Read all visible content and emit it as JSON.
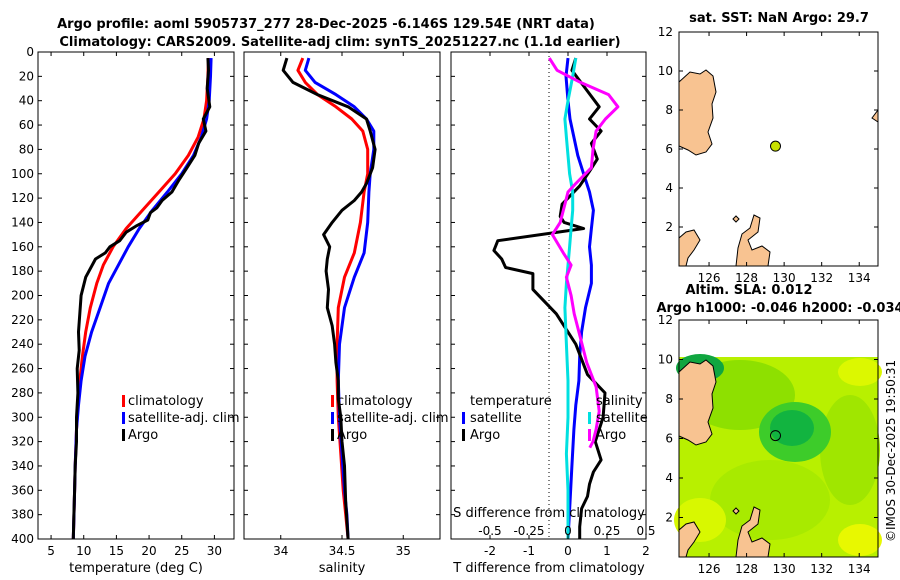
{
  "figure": {
    "title_line1": "Argo profile: aoml 5905737_277 28-Dec-2025 -6.146S 129.54E (NRT data)",
    "title_line2": "Climatology: CARS2009. Satellite-adj clim: synTS_20251227.nc (1.1d earlier)",
    "credit": "©IMOS 30-Dec-2025 19:50:31"
  },
  "colors": {
    "climatology": "#ff0000",
    "satellite": "#0000ff",
    "argo": "#000000",
    "salinity_diff": "#ff00ff",
    "salinity_sat": "#00e0e0",
    "land": "#f8c391",
    "marker": "#c8e000"
  },
  "chart_data": [
    {
      "id": "temperature",
      "type": "line",
      "xlabel": "temperature (deg C)",
      "xlim": [
        3,
        33
      ],
      "xticks": [
        "5",
        "10",
        "15",
        "20",
        "25",
        "30"
      ],
      "xtick_values": [
        5,
        10,
        15,
        20,
        25,
        30
      ],
      "ylim": [
        0,
        400
      ],
      "yticks": [
        "0",
        "20",
        "40",
        "60",
        "80",
        "100",
        "120",
        "140",
        "160",
        "180",
        "200",
        "220",
        "240",
        "260",
        "280",
        "300",
        "320",
        "340",
        "360",
        "380",
        "400"
      ],
      "ytick_values": [
        0,
        20,
        40,
        60,
        80,
        100,
        120,
        140,
        160,
        180,
        200,
        220,
        240,
        260,
        280,
        300,
        320,
        340,
        360,
        380,
        400
      ],
      "legend": [
        "climatology",
        "satellite-adj. clim",
        "Argo"
      ],
      "series": [
        {
          "name": "climatology",
          "color": "climatology",
          "x": [
            29.1,
            29.0,
            28.8,
            28.4,
            27.5,
            26.0,
            24.0,
            21.5,
            19.0,
            16.5,
            14.5,
            13.0,
            12.0,
            11.0,
            10.3,
            9.8,
            9.4,
            9.1,
            8.9,
            8.7,
            8.55,
            8.4
          ],
          "y": [
            5,
            20,
            40,
            55,
            70,
            85,
            100,
            115,
            130,
            145,
            160,
            175,
            190,
            210,
            230,
            250,
            270,
            290,
            310,
            340,
            370,
            400
          ]
        },
        {
          "name": "satellite-adj. clim",
          "color": "satellite",
          "x": [
            29.5,
            29.4,
            29.2,
            28.8,
            28.0,
            26.8,
            25.0,
            22.8,
            20.5,
            18.5,
            16.8,
            15.3,
            13.8,
            12.5,
            11.2,
            10.2,
            9.6,
            9.2,
            8.9,
            8.7,
            8.55,
            8.4
          ],
          "y": [
            5,
            20,
            40,
            55,
            70,
            85,
            100,
            115,
            130,
            145,
            160,
            175,
            190,
            210,
            230,
            250,
            270,
            290,
            310,
            340,
            370,
            400
          ]
        },
        {
          "name": "Argo",
          "color": "argo",
          "x": [
            29.0,
            29.1,
            28.9,
            29.3,
            28.3,
            28.7,
            27.6,
            27.0,
            25.8,
            24.6,
            23.5,
            22.0,
            21.2,
            20.2,
            19.8,
            18.0,
            16.5,
            15.5,
            14.0,
            13.3,
            11.8,
            10.3,
            9.6,
            9.4,
            9.2,
            9.3,
            9.0,
            9.1,
            8.9,
            8.9,
            8.7,
            8.6,
            8.5,
            8.4
          ],
          "y": [
            5,
            15,
            30,
            45,
            55,
            65,
            75,
            85,
            95,
            105,
            115,
            122,
            128,
            132,
            138,
            143,
            148,
            155,
            160,
            165,
            170,
            185,
            200,
            215,
            230,
            245,
            260,
            280,
            300,
            320,
            340,
            360,
            380,
            400
          ]
        }
      ]
    },
    {
      "id": "salinity",
      "type": "line",
      "xlabel": "salinity",
      "xlim": [
        33.7,
        35.3
      ],
      "xticks": [
        "34",
        "34.5",
        "35"
      ],
      "xtick_values": [
        34.0,
        34.5,
        35.0
      ],
      "ylim": [
        0,
        400
      ],
      "legend": [
        "climatology",
        "satellite-adj. clim",
        "Argo"
      ],
      "series": [
        {
          "name": "climatology",
          "color": "climatology",
          "x": [
            34.18,
            34.14,
            34.2,
            34.3,
            34.45,
            34.58,
            34.67,
            34.71,
            34.71,
            34.68,
            34.65,
            34.6,
            34.52,
            34.47,
            34.46,
            34.46,
            34.47,
            34.49,
            34.51,
            34.53,
            34.55
          ],
          "y": [
            5,
            15,
            25,
            35,
            45,
            55,
            65,
            80,
            100,
            115,
            140,
            165,
            185,
            210,
            240,
            270,
            300,
            330,
            360,
            380,
            400
          ]
        },
        {
          "name": "satellite-adj. clim",
          "color": "satellite",
          "x": [
            34.23,
            34.2,
            34.28,
            34.45,
            34.6,
            34.7,
            34.76,
            34.76,
            34.73,
            34.72,
            34.71,
            34.68,
            34.6,
            34.52,
            34.48,
            34.47,
            34.48,
            34.5,
            34.52,
            34.54,
            34.55
          ],
          "y": [
            5,
            15,
            25,
            35,
            45,
            55,
            65,
            80,
            100,
            115,
            140,
            165,
            185,
            210,
            240,
            270,
            300,
            330,
            360,
            380,
            400
          ]
        },
        {
          "name": "Argo",
          "color": "argo",
          "x": [
            34.05,
            34.02,
            34.1,
            34.3,
            34.55,
            34.7,
            34.73,
            34.77,
            34.75,
            34.7,
            34.66,
            34.6,
            34.5,
            34.42,
            34.35,
            34.4,
            34.38,
            34.37,
            34.39,
            34.38,
            34.42,
            34.44,
            34.45,
            34.47,
            34.47,
            34.49,
            34.5,
            34.52,
            34.53,
            34.55
          ],
          "y": [
            5,
            15,
            25,
            35,
            45,
            55,
            65,
            80,
            95,
            108,
            115,
            122,
            130,
            140,
            150,
            160,
            170,
            180,
            195,
            210,
            225,
            240,
            255,
            270,
            285,
            300,
            320,
            340,
            370,
            400
          ]
        }
      ]
    },
    {
      "id": "difference",
      "type": "line",
      "xlabel": "T difference from climatology",
      "xlim": [
        -3.0,
        2.0
      ],
      "xticks": [
        "-2",
        "-1",
        "0",
        "1",
        "2"
      ],
      "xtick_values": [
        -2,
        -1,
        0,
        1,
        2
      ],
      "top_axis_label": "S difference from climatology",
      "top_ticks": [
        "-0.5",
        "-0.25",
        "0",
        "0.25",
        "0.5"
      ],
      "top_tick_values": [
        -0.5,
        -0.25,
        0,
        0.25,
        0.5
      ],
      "ylim": [
        0,
        400
      ],
      "legend_left_title": "temperature",
      "legend_right_title": "salinity",
      "legend_left": [
        "satellite",
        "Argo"
      ],
      "legend_right": [
        "satellite",
        "Argo"
      ],
      "series": [
        {
          "name": "T satellite",
          "color": "satellite",
          "x": [
            0.0,
            -0.05,
            0.0,
            0.05,
            0.15,
            0.25,
            0.4,
            0.55,
            0.65,
            0.6,
            0.55,
            0.6,
            0.6,
            0.45,
            0.35,
            0.3,
            0.28,
            0.2,
            0.15,
            0.1,
            0.05,
            0.0
          ],
          "y": [
            5,
            20,
            40,
            55,
            70,
            85,
            100,
            115,
            130,
            145,
            160,
            175,
            190,
            210,
            230,
            250,
            270,
            290,
            310,
            340,
            370,
            400
          ]
        },
        {
          "name": "T Argo",
          "color": "argo",
          "x": [
            0.2,
            0.1,
            0.45,
            0.8,
            0.55,
            0.85,
            0.6,
            0.75,
            0.55,
            0.3,
            -0.15,
            -0.2,
            -0.1,
            0.4,
            -1.8,
            -1.9,
            -1.7,
            -1.6,
            -0.9,
            -0.9,
            -0.3,
            0.2,
            0.5,
            0.95,
            0.9,
            0.7,
            0.85,
            0.65,
            0.55,
            0.5,
            0.35,
            0.3,
            0.3
          ],
          "y": [
            5,
            15,
            30,
            45,
            55,
            65,
            75,
            88,
            98,
            110,
            125,
            135,
            140,
            145,
            155,
            163,
            170,
            177,
            182,
            195,
            215,
            240,
            265,
            280,
            300,
            320,
            335,
            345,
            355,
            365,
            375,
            390,
            400
          ]
        },
        {
          "name": "S satellite",
          "color": "salinity_sat",
          "x": [
            0.05,
            0.03,
            0.0,
            -0.02,
            -0.01,
            0.0,
            0.01,
            0.03,
            0.03,
            0.02,
            0.01,
            0.0,
            -0.01,
            -0.02,
            -0.01,
            0.0,
            0.0,
            -0.01,
            0.0,
            0.0,
            0.0
          ],
          "y": [
            5,
            20,
            40,
            55,
            70,
            85,
            100,
            115,
            130,
            145,
            160,
            175,
            190,
            210,
            240,
            270,
            300,
            330,
            360,
            380,
            400
          ]
        },
        {
          "name": "S Argo",
          "color": "salinity_diff",
          "x": [
            -0.12,
            -0.07,
            0.08,
            0.26,
            0.32,
            0.24,
            0.18,
            0.16,
            0.15,
            0.05,
            0.0,
            -0.02,
            -0.05,
            -0.1,
            -0.03,
            0.02,
            -0.01,
            0.02,
            0.04,
            0.08,
            0.12,
            0.18,
            0.2,
            0.18,
            0.16,
            0.14
          ],
          "y": [
            5,
            15,
            25,
            35,
            45,
            55,
            65,
            80,
            95,
            108,
            115,
            125,
            140,
            150,
            165,
            175,
            185,
            200,
            215,
            235,
            255,
            275,
            295,
            310,
            320,
            325
          ]
        }
      ]
    },
    {
      "id": "sst_map",
      "type": "scatter",
      "title": "sat. SST: NaN Argo: 29.7",
      "xlim": [
        124.4,
        135
      ],
      "ylim": [
        0,
        12
      ],
      "xticks": [
        "126",
        "128",
        "130",
        "132",
        "134"
      ],
      "xtick_values": [
        126,
        128,
        130,
        132,
        134
      ],
      "yticks": [
        "2",
        "4",
        "6",
        "8",
        "10",
        "12"
      ],
      "ytick_values": [
        2,
        4,
        6,
        8,
        10,
        12
      ],
      "point": {
        "lon": 129.54,
        "lat": 6.146
      }
    },
    {
      "id": "sla_map",
      "type": "heatmap",
      "title_line1": "Altim. SLA: 0.012",
      "title_line2": "Argo h1000: -0.046 h2000: -0.034",
      "xlim": [
        124.4,
        135
      ],
      "ylim": [
        0,
        12
      ],
      "xticks": [
        "126",
        "128",
        "130",
        "132",
        "134"
      ],
      "xtick_values": [
        126,
        128,
        130,
        132,
        134
      ],
      "yticks": [
        "2",
        "4",
        "6",
        "8",
        "10",
        "12"
      ],
      "ytick_values": [
        2,
        4,
        6,
        8,
        10,
        12
      ],
      "data_top_lat": 10.1,
      "point": {
        "lon": 129.54,
        "lat": 6.146
      }
    }
  ]
}
